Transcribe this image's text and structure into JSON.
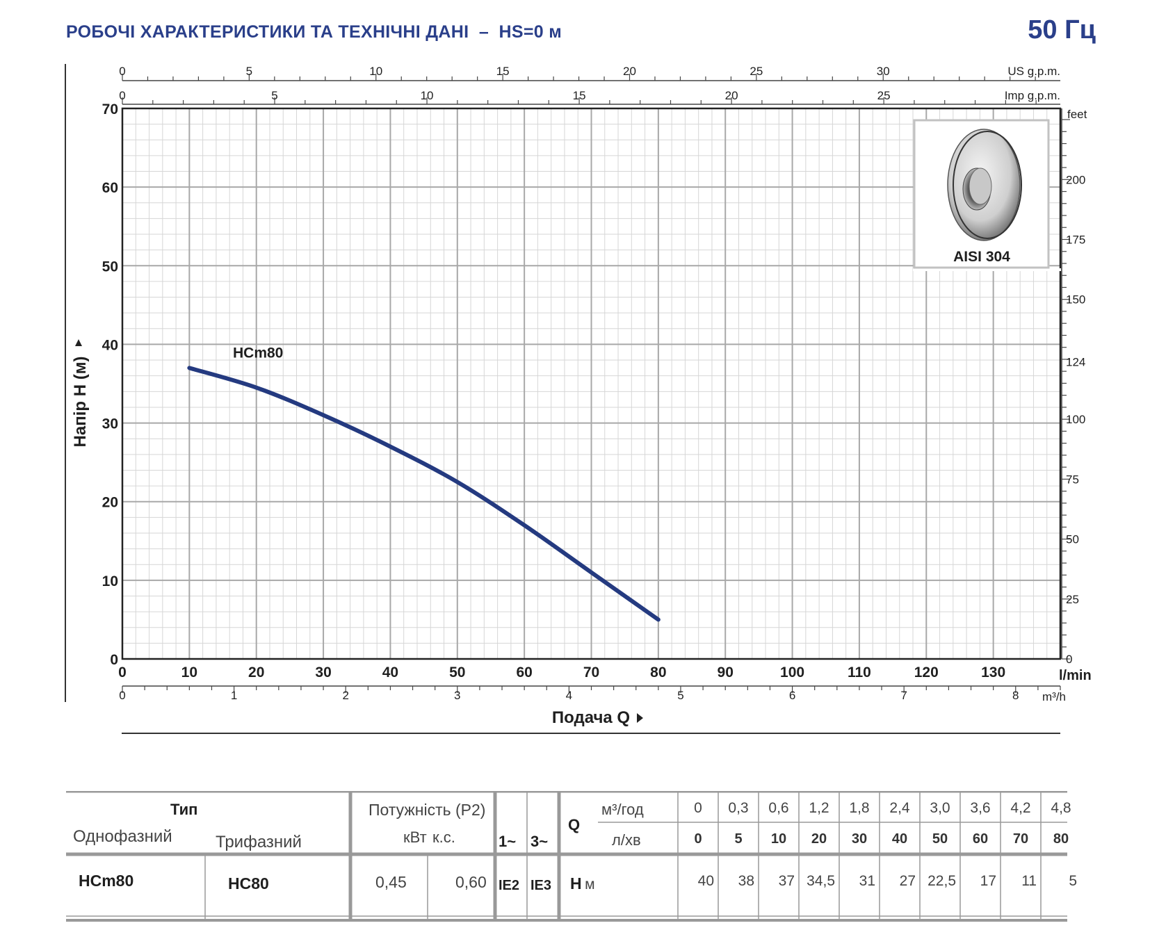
{
  "header": {
    "title": "РОБОЧІ ХАРАКТЕРИСТИКИ ТА ТЕХНІЧНІ ДАНІ  –  HS=0 м",
    "frequency": "50 Гц"
  },
  "chart_data": {
    "type": "line",
    "ylabel": "Напір H  (м)",
    "xlabel": "Подача Q",
    "xlim": [
      0,
      140
    ],
    "ylim": [
      0,
      70
    ],
    "x_unit": "l/min",
    "x_ticks": [
      0,
      10,
      20,
      30,
      40,
      50,
      60,
      70,
      80,
      90,
      100,
      110,
      120,
      130
    ],
    "y_ticks": [
      0,
      10,
      20,
      30,
      40,
      50,
      60,
      70
    ],
    "us_gpm": {
      "unit": "US g.p.m.",
      "ticks": [
        0,
        5,
        10,
        15,
        20,
        25,
        30
      ]
    },
    "imp_gpm": {
      "unit": "Imp g.p.m.",
      "ticks": [
        0,
        5,
        10,
        15,
        20,
        25
      ]
    },
    "m3h": {
      "unit": "m³/h",
      "ticks": [
        0,
        1,
        2,
        3,
        4,
        5,
        6,
        7,
        8
      ]
    },
    "feet": {
      "unit": "feet",
      "ticks": [
        0,
        25,
        50,
        75,
        100,
        124,
        150,
        175,
        200
      ]
    },
    "series": [
      {
        "name": "HCm80",
        "x": [
          10,
          20,
          30,
          40,
          50,
          60,
          70,
          80
        ],
        "y": [
          37,
          34.5,
          31,
          27,
          22.5,
          17,
          11,
          5
        ]
      }
    ],
    "grid": true,
    "series_color": "#243a80"
  },
  "inset": {
    "label": "AISI 304"
  },
  "table": {
    "h_type": "Тип",
    "h_single": "Однофазний",
    "h_three": "Трифазний",
    "h_power": "Потужність (P2)",
    "h_kw": "кВт",
    "h_hp": "к.с.",
    "h_1ph": "1~",
    "h_3ph": "3~",
    "h_q": "Q",
    "h_m3": "м³/год",
    "h_lmin": "л/хв",
    "q_m3": [
      "0",
      "0,3",
      "0,6",
      "1,2",
      "1,8",
      "2,4",
      "3,0",
      "3,6",
      "4,2",
      "4,8"
    ],
    "q_lmin": [
      "0",
      "5",
      "10",
      "20",
      "30",
      "40",
      "50",
      "60",
      "70",
      "80"
    ],
    "row": {
      "single": "HCm80",
      "three": "HC80",
      "kw": "0,45",
      "hp": "0,60",
      "ie1": "IE2",
      "ie3": "IE3",
      "h_label": "H",
      "h_unit": "м",
      "h_values": [
        "40",
        "38",
        "37",
        "34,5",
        "31",
        "27",
        "22,5",
        "17",
        "11",
        "5"
      ]
    }
  }
}
